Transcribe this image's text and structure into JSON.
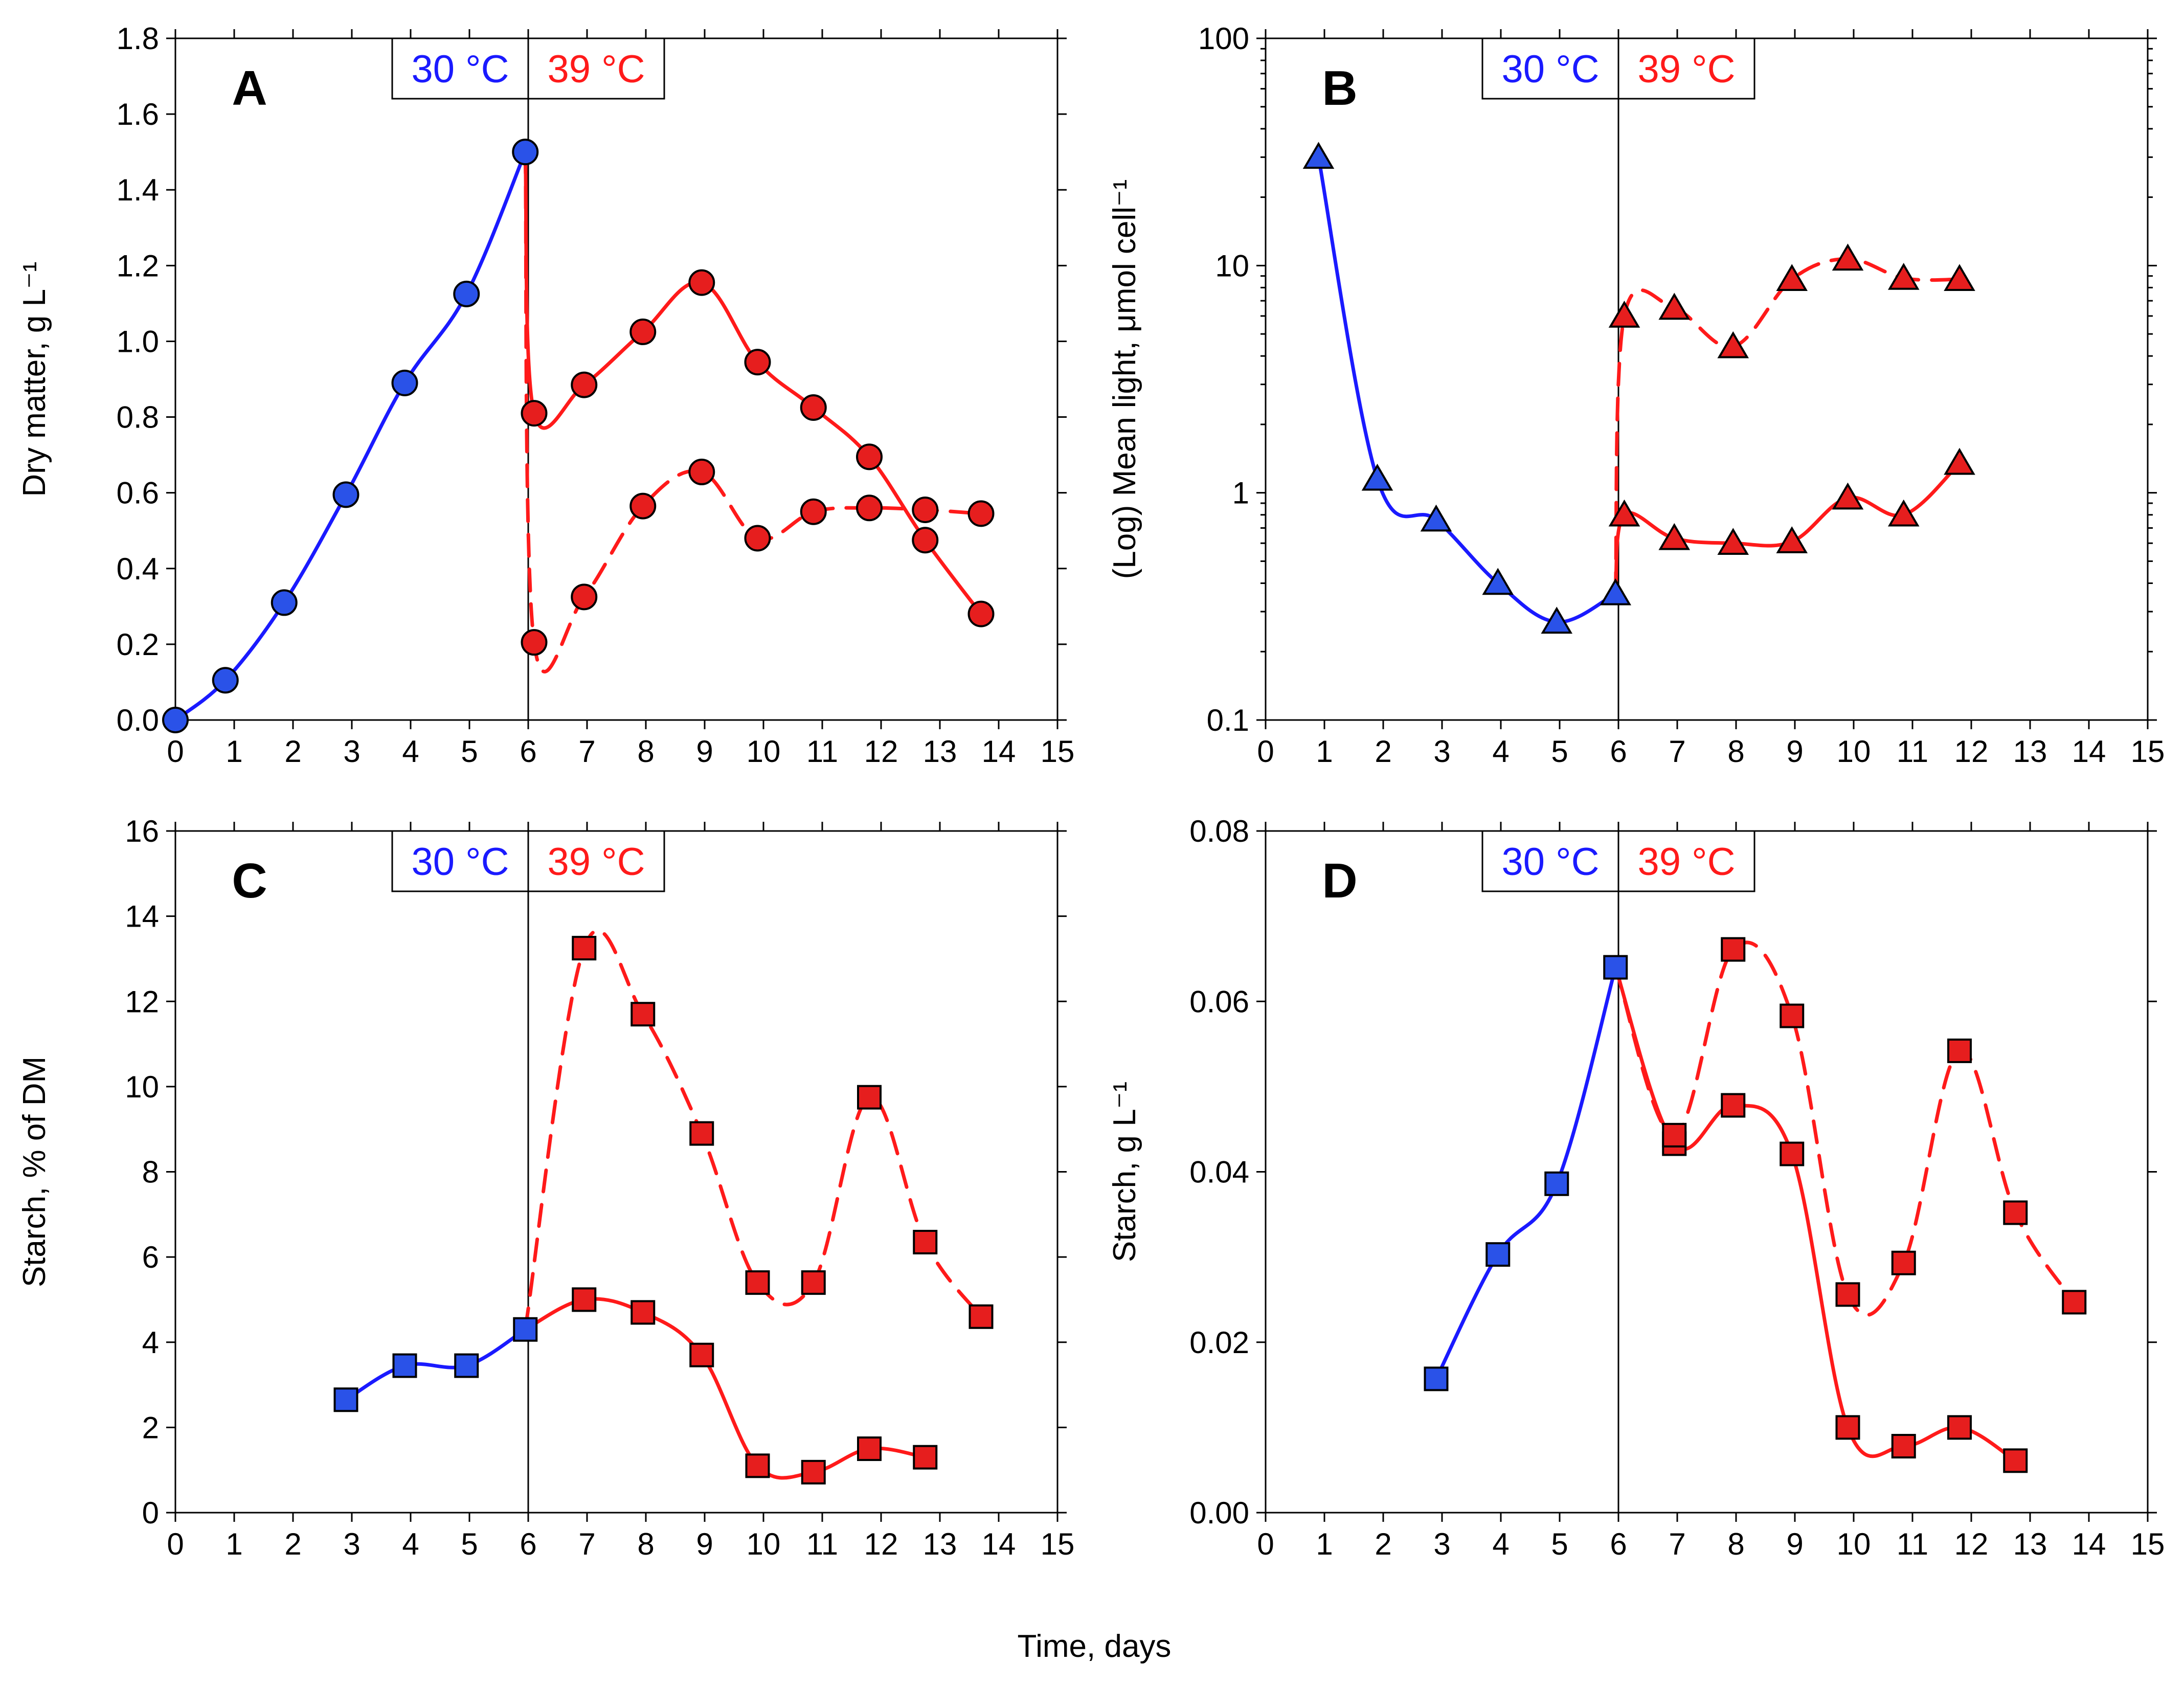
{
  "figure": {
    "xlabel": "Time, days"
  },
  "colors": {
    "blue": "#1a1aff",
    "red": "#ff1a1a",
    "blue_fill": "#2a52e8",
    "red_fill": "#e61e1e",
    "marker_edge": "#000000"
  },
  "chart_data": [
    {
      "panel": "A",
      "type": "line",
      "ylabel": "Dry matter, g L⁻¹",
      "yscale": "linear",
      "xlim": [
        0,
        15
      ],
      "ylim": [
        0,
        1.8
      ],
      "xticks": [
        0,
        1,
        2,
        3,
        4,
        5,
        6,
        7,
        8,
        9,
        10,
        11,
        12,
        13,
        14,
        15
      ],
      "xtick_labels": [
        "0",
        "1",
        "2",
        "3",
        "4",
        "5",
        "6",
        "7",
        "8",
        "9",
        "10",
        "11",
        "12",
        "13",
        "14",
        "15"
      ],
      "yticks": [
        0,
        0.2,
        0.4,
        0.6,
        0.8,
        1.0,
        1.2,
        1.4,
        1.6,
        1.8
      ],
      "ytick_labels": [
        "0.0",
        "0.2",
        "0.4",
        "0.6",
        "0.8",
        "1.0",
        "1.2",
        "1.4",
        "1.6",
        "1.8"
      ],
      "marker": "circle",
      "divider_x": 6,
      "temp_labels": [
        "30 °C",
        "39 °C"
      ],
      "series": [
        {
          "name": "30 °C",
          "color": "blue",
          "dash": false,
          "x": [
            0,
            0.85,
            1.85,
            2.9,
            3.9,
            4.95,
            5.95
          ],
          "y": [
            0.0,
            0.105,
            0.31,
            0.595,
            0.89,
            1.125,
            1.5
          ]
        },
        {
          "name": "39 °C solid",
          "color": "red",
          "dash": false,
          "x": [
            5.95,
            6.1,
            6.95,
            7.95,
            8.95,
            9.9,
            10.85,
            11.8,
            12.75,
            13.7
          ],
          "y": [
            1.5,
            0.81,
            0.885,
            1.025,
            1.155,
            0.945,
            0.825,
            0.695,
            0.475,
            0.28
          ]
        },
        {
          "name": "39 °C dashed",
          "color": "red",
          "dash": true,
          "x": [
            5.95,
            6.1,
            6.95,
            7.95,
            8.95,
            9.9,
            10.85,
            11.8,
            12.75,
            13.7
          ],
          "y": [
            1.5,
            0.205,
            0.325,
            0.565,
            0.655,
            0.48,
            0.55,
            0.56,
            0.555,
            0.545
          ]
        }
      ]
    },
    {
      "panel": "B",
      "type": "line",
      "ylabel": "(Log) Mean light, μmol cell⁻¹",
      "yscale": "log",
      "xlim": [
        0,
        15
      ],
      "ylim": [
        0.1,
        100
      ],
      "xticks": [
        0,
        1,
        2,
        3,
        4,
        5,
        6,
        7,
        8,
        9,
        10,
        11,
        12,
        13,
        14,
        15
      ],
      "xtick_labels": [
        "0",
        "1",
        "2",
        "3",
        "4",
        "5",
        "6",
        "7",
        "8",
        "9",
        "10",
        "11",
        "12",
        "13",
        "14",
        "15"
      ],
      "yticks": [
        0.1,
        1,
        10,
        100
      ],
      "ytick_labels": [
        "0.1",
        "1",
        "10",
        "100"
      ],
      "marker": "triangle",
      "divider_x": 6,
      "temp_labels": [
        "30 °C",
        "39 °C"
      ],
      "series": [
        {
          "name": "30 °C",
          "color": "blue",
          "dash": false,
          "x": [
            0.9,
            1.9,
            2.9,
            3.95,
            4.95,
            5.95
          ],
          "y": [
            30,
            1.15,
            0.76,
            0.4,
            0.27,
            0.36
          ]
        },
        {
          "name": "39 °C solid",
          "color": "red",
          "dash": false,
          "x": [
            5.95,
            6.1,
            6.95,
            7.95,
            8.95,
            9.9,
            10.85,
            11.8
          ],
          "y": [
            0.36,
            0.8,
            0.63,
            0.6,
            0.61,
            0.95,
            0.8,
            1.35
          ]
        },
        {
          "name": "39 °C dashed",
          "color": "red",
          "dash": true,
          "x": [
            5.95,
            6.1,
            6.95,
            7.95,
            8.95,
            9.9,
            10.85,
            11.8
          ],
          "y": [
            0.36,
            6.0,
            6.5,
            4.4,
            8.7,
            10.7,
            8.8,
            8.7
          ]
        }
      ]
    },
    {
      "panel": "C",
      "type": "line",
      "ylabel": "Starch, % of DM",
      "yscale": "linear",
      "xlim": [
        0,
        15
      ],
      "ylim": [
        0,
        16
      ],
      "xticks": [
        0,
        1,
        2,
        3,
        4,
        5,
        6,
        7,
        8,
        9,
        10,
        11,
        12,
        13,
        14,
        15
      ],
      "xtick_labels": [
        "0",
        "1",
        "2",
        "3",
        "4",
        "5",
        "6",
        "7",
        "8",
        "9",
        "10",
        "11",
        "12",
        "13",
        "14",
        "15"
      ],
      "yticks": [
        0,
        2,
        4,
        6,
        8,
        10,
        12,
        14,
        16
      ],
      "ytick_labels": [
        "0",
        "2",
        "4",
        "6",
        "8",
        "10",
        "12",
        "14",
        "16"
      ],
      "marker": "square",
      "divider_x": 6,
      "temp_labels": [
        "30 °C",
        "39 °C"
      ],
      "series": [
        {
          "name": "30 °C",
          "color": "blue",
          "dash": false,
          "x": [
            2.9,
            3.9,
            4.95,
            5.95
          ],
          "y": [
            2.65,
            3.45,
            3.45,
            4.3
          ]
        },
        {
          "name": "39 °C solid",
          "color": "red",
          "dash": false,
          "x": [
            5.95,
            6.95,
            7.95,
            8.95,
            9.9,
            10.85,
            11.8,
            12.75
          ],
          "y": [
            4.3,
            5.0,
            4.7,
            3.7,
            1.1,
            0.95,
            1.5,
            1.3
          ]
        },
        {
          "name": "39 °C dashed",
          "color": "red",
          "dash": true,
          "x": [
            5.95,
            6.95,
            7.95,
            8.95,
            9.9,
            10.85,
            11.8,
            12.75,
            13.7
          ],
          "y": [
            4.3,
            13.25,
            11.7,
            8.9,
            5.4,
            5.4,
            9.75,
            6.35,
            4.6
          ]
        }
      ]
    },
    {
      "panel": "D",
      "type": "line",
      "ylabel": "Starch, g L⁻¹",
      "yscale": "linear",
      "xlim": [
        0,
        15
      ],
      "ylim": [
        0,
        0.08
      ],
      "xticks": [
        0,
        1,
        2,
        3,
        4,
        5,
        6,
        7,
        8,
        9,
        10,
        11,
        12,
        13,
        14,
        15
      ],
      "xtick_labels": [
        "0",
        "1",
        "2",
        "3",
        "4",
        "5",
        "6",
        "7",
        "8",
        "9",
        "10",
        "11",
        "12",
        "13",
        "14",
        "15"
      ],
      "yticks": [
        0,
        0.02,
        0.04,
        0.06,
        0.08
      ],
      "ytick_labels": [
        "0.00",
        "0.02",
        "0.04",
        "0.06",
        "0.08"
      ],
      "marker": "square",
      "divider_x": 6,
      "temp_labels": [
        "30 °C",
        "39 °C"
      ],
      "series": [
        {
          "name": "30 °C",
          "color": "blue",
          "dash": false,
          "x": [
            2.9,
            3.95,
            4.95,
            5.95
          ],
          "y": [
            0.0157,
            0.0303,
            0.0386,
            0.064
          ]
        },
        {
          "name": "39 °C solid",
          "color": "red",
          "dash": false,
          "x": [
            5.95,
            6.95,
            7.95,
            8.95,
            9.9,
            10.85,
            11.8,
            12.75
          ],
          "y": [
            0.064,
            0.0433,
            0.0478,
            0.0421,
            0.01,
            0.0078,
            0.01,
            0.0061
          ]
        },
        {
          "name": "39 °C dashed",
          "color": "red",
          "dash": true,
          "x": [
            5.95,
            6.95,
            7.95,
            8.95,
            9.9,
            10.85,
            11.8,
            12.75,
            13.75
          ],
          "y": [
            0.064,
            0.0443,
            0.0661,
            0.0583,
            0.0256,
            0.0293,
            0.0542,
            0.0352,
            0.0247
          ]
        }
      ]
    }
  ]
}
